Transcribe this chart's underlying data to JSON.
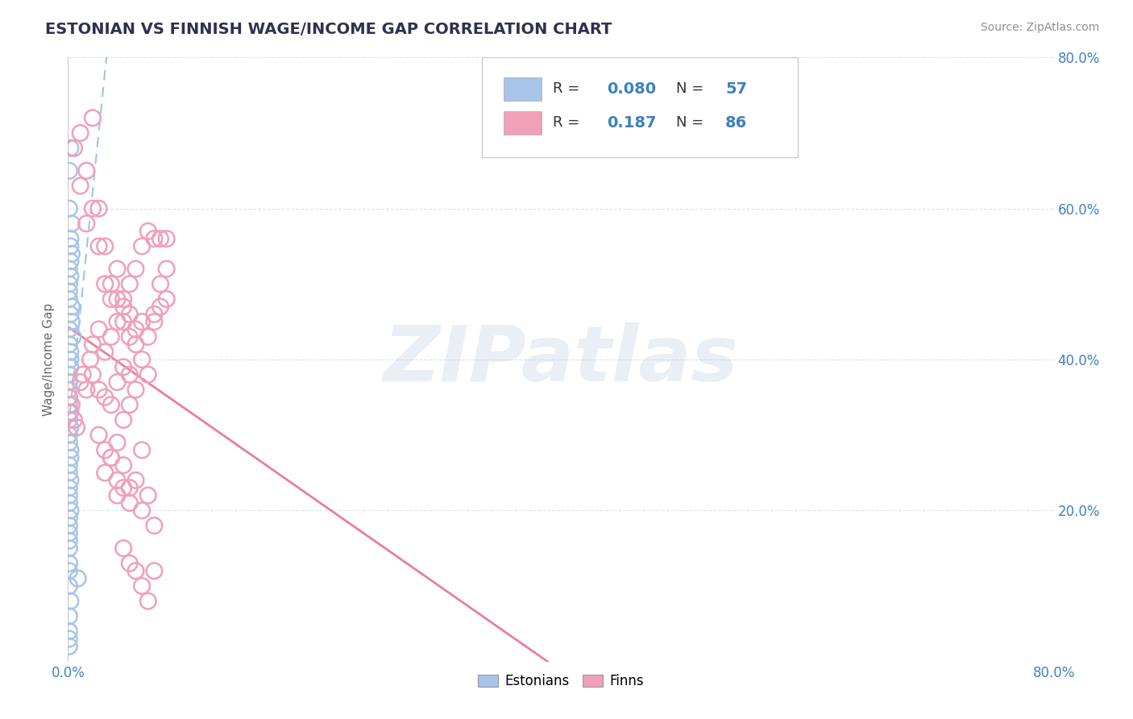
{
  "title": "ESTONIAN VS FINNISH WAGE/INCOME GAP CORRELATION CHART",
  "source": "Source: ZipAtlas.com",
  "ylabel": "Wage/Income Gap",
  "legend_labels": [
    "Estonians",
    "Finns"
  ],
  "R_estonian": 0.08,
  "N_estonian": 57,
  "R_finn": 0.187,
  "N_finn": 86,
  "estonian_color": "#a8c4e8",
  "finn_color": "#f0a0b8",
  "trend_estonian_color": "#90b8e0",
  "trend_finn_color": "#e87090",
  "background": "#ffffff",
  "xmin": 0.0,
  "xmax": 0.8,
  "ymin": 0.0,
  "ymax": 0.8,
  "watermark_text": "ZIPatlas",
  "watermark_color": "#c8d8e8",
  "watermark_alpha": 0.4,
  "legend_text_blue": "#4080c0",
  "legend_text_dark": "#333333",
  "axis_tick_color": "#4080c0",
  "grid_color": "#d0dde8",
  "spine_color": "#cccccc"
}
